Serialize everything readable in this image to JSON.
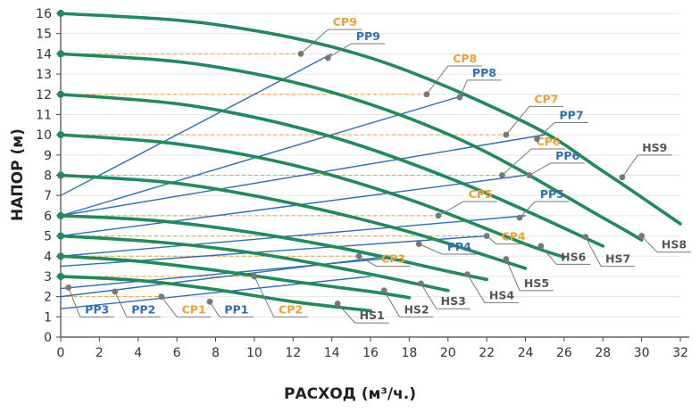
{
  "chart_data": {
    "type": "line",
    "xlabel": "РАСХОД (м³/ч.)",
    "ylabel": "НАПОР (м)",
    "xlim": [
      0,
      32
    ],
    "ylim": [
      0,
      16
    ],
    "x_ticks": [
      0,
      2,
      4,
      6,
      8,
      10,
      12,
      14,
      16,
      18,
      20,
      22,
      24,
      26,
      28,
      30,
      32
    ],
    "y_ticks": [
      0,
      1,
      2,
      3,
      4,
      5,
      6,
      7,
      8,
      9,
      10,
      11,
      12,
      13,
      14,
      15,
      16
    ],
    "colors": {
      "pump_curve": "#1f8a5b",
      "system_curve": "#2f6eb5",
      "operating_point": "#f0a030",
      "label_pump": "#555555",
      "label_pp": "#2f6eb5",
      "label_cp": "#f0a030"
    },
    "pump_curves": [
      {
        "name": "HS1",
        "H0": 3,
        "Qmax": 16,
        "points": [
          [
            0,
            3
          ],
          [
            4,
            2.8
          ],
          [
            8,
            2.35
          ],
          [
            12,
            1.75
          ],
          [
            16,
            1.3
          ]
        ]
      },
      {
        "name": "HS2",
        "H0": 4,
        "Qmax": 18,
        "points": [
          [
            0,
            4
          ],
          [
            4,
            3.75
          ],
          [
            8,
            3.3
          ],
          [
            12,
            2.75
          ],
          [
            16,
            2.25
          ],
          [
            18,
            1.95
          ]
        ]
      },
      {
        "name": "HS3",
        "H0": 5,
        "Qmax": 20,
        "points": [
          [
            0,
            5
          ],
          [
            5,
            4.7
          ],
          [
            10,
            4.15
          ],
          [
            15,
            3.3
          ],
          [
            20,
            2.3
          ]
        ]
      },
      {
        "name": "HS4",
        "H0": 6,
        "Qmax": 22,
        "points": [
          [
            0,
            6
          ],
          [
            5,
            5.75
          ],
          [
            10,
            5.15
          ],
          [
            15,
            4.3
          ],
          [
            20,
            3.25
          ],
          [
            22,
            2.85
          ]
        ]
      },
      {
        "name": "HS5",
        "H0": 8,
        "Qmax": 24,
        "points": [
          [
            0,
            8
          ],
          [
            6,
            7.6
          ],
          [
            12,
            6.6
          ],
          [
            18,
            5.2
          ],
          [
            24,
            3.4
          ]
        ]
      },
      {
        "name": "HS6",
        "H0": 10,
        "Qmax": 26,
        "points": [
          [
            0,
            10
          ],
          [
            6,
            9.55
          ],
          [
            12,
            8.5
          ],
          [
            18,
            6.8
          ],
          [
            24,
            4.6
          ],
          [
            26,
            3.95
          ]
        ]
      },
      {
        "name": "HS7",
        "H0": 12,
        "Qmax": 28,
        "points": [
          [
            0,
            12
          ],
          [
            7,
            11.4
          ],
          [
            14,
            9.9
          ],
          [
            21,
            7.5
          ],
          [
            28,
            4.5
          ]
        ]
      },
      {
        "name": "HS8",
        "H0": 14,
        "Qmax": 30,
        "points": [
          [
            0,
            14
          ],
          [
            7,
            13.5
          ],
          [
            14,
            12.1
          ],
          [
            21,
            9.6
          ],
          [
            28,
            5.9
          ],
          [
            30,
            4.8
          ]
        ]
      },
      {
        "name": "HS9",
        "H0": 16,
        "Qmax": 32,
        "points": [
          [
            0,
            16
          ],
          [
            8,
            15.45
          ],
          [
            16,
            13.8
          ],
          [
            24,
            10.6
          ],
          [
            28,
            8.2
          ],
          [
            32,
            5.6
          ]
        ]
      }
    ],
    "system_curves": [
      {
        "name": "PP1",
        "points": [
          [
            0,
            1.4
          ],
          [
            16,
            3.0
          ]
        ]
      },
      {
        "name": "PP2",
        "points": [
          [
            0,
            2.0
          ],
          [
            17,
            4.0
          ]
        ]
      },
      {
        "name": "PP3",
        "points": [
          [
            0,
            2.4
          ],
          [
            17,
            3.9
          ]
        ]
      },
      {
        "name": "PP4",
        "points": [
          [
            0,
            3.5
          ],
          [
            22,
            5.0
          ]
        ]
      },
      {
        "name": "PP5",
        "points": [
          [
            0,
            4.0
          ],
          [
            24,
            6.0
          ]
        ]
      },
      {
        "name": "PP6",
        "points": [
          [
            0,
            5.0
          ],
          [
            24,
            8.0
          ]
        ]
      },
      {
        "name": "PP7",
        "points": [
          [
            0,
            6.0
          ],
          [
            25,
            10.0
          ]
        ]
      },
      {
        "name": "PP8",
        "points": [
          [
            0,
            6.0
          ],
          [
            21,
            12.0
          ]
        ]
      },
      {
        "name": "PP9",
        "points": [
          [
            0,
            7.0
          ],
          [
            14,
            14.0
          ]
        ]
      }
    ],
    "operating_points": [
      {
        "name": "CP1",
        "x": 5.2,
        "y": 2.0
      },
      {
        "name": "CP2",
        "x": 10.0,
        "y": 3.0
      },
      {
        "name": "CP3",
        "x": 15.4,
        "y": 4.0
      },
      {
        "name": "CP4",
        "x": 22.0,
        "y": 5.0
      },
      {
        "name": "CP5",
        "x": 19.5,
        "y": 6.0
      },
      {
        "name": "CP6",
        "x": 22.8,
        "y": 8.0
      },
      {
        "name": "CP7",
        "x": 23.0,
        "y": 10.0
      },
      {
        "name": "CP8",
        "x": 18.9,
        "y": 12.0
      },
      {
        "name": "CP9",
        "x": 12.4,
        "y": 14.0
      }
    ],
    "pp_markers": [
      {
        "name": "PP1",
        "x": 7.7,
        "y": 1.75
      },
      {
        "name": "PP2",
        "x": 2.8,
        "y": 2.25
      },
      {
        "name": "PP3",
        "x": 0.4,
        "y": 2.45
      },
      {
        "name": "PP4",
        "x": 18.5,
        "y": 4.6
      },
      {
        "name": "PP5",
        "x": 23.7,
        "y": 5.9
      },
      {
        "name": "PP6",
        "x": 24.2,
        "y": 8.0
      },
      {
        "name": "PP7",
        "x": 24.6,
        "y": 9.8
      },
      {
        "name": "PP8",
        "x": 20.6,
        "y": 11.85
      },
      {
        "name": "PP9",
        "x": 13.8,
        "y": 13.8
      }
    ],
    "hs_markers": [
      {
        "name": "HS1",
        "x": 14.3,
        "y": 1.65
      },
      {
        "name": "HS2",
        "x": 16.7,
        "y": 2.3
      },
      {
        "name": "HS3",
        "x": 18.6,
        "y": 2.65
      },
      {
        "name": "HS4",
        "x": 21.0,
        "y": 3.1
      },
      {
        "name": "HS5",
        "x": 23.0,
        "y": 3.85
      },
      {
        "name": "HS6",
        "x": 24.8,
        "y": 4.5
      },
      {
        "name": "HS7",
        "x": 27.1,
        "y": 4.95
      },
      {
        "name": "HS8",
        "x": 30.0,
        "y": 5.0
      },
      {
        "name": "HS9",
        "x": 29.0,
        "y": 7.9
      }
    ],
    "labels": {
      "CP9": {
        "x": 13.8,
        "y": 15.2
      },
      "PP9": {
        "x": 15.0,
        "y": 14.5
      },
      "CP8": {
        "x": 20.0,
        "y": 13.4
      },
      "PP8": {
        "x": 21.0,
        "y": 12.7
      },
      "CP7": {
        "x": 24.2,
        "y": 11.4
      },
      "PP7": {
        "x": 25.5,
        "y": 10.6
      },
      "CP6": {
        "x": 24.3,
        "y": 9.3
      },
      "PP6": {
        "x": 25.3,
        "y": 8.6
      },
      "CP5": {
        "x": 20.8,
        "y": 6.7
      },
      "PP5": {
        "x": 24.5,
        "y": 6.7
      },
      "CP4": {
        "x": 22.5,
        "y": 4.6
      },
      "PP4": {
        "x": 19.7,
        "y": 4.1
      },
      "CP3": {
        "x": 16.3,
        "y": 3.5
      },
      "CP2": {
        "x": 11.0,
        "y": 1.0
      },
      "CP1": {
        "x": 6.0,
        "y": 1.0
      },
      "PP1": {
        "x": 8.2,
        "y": 1.0
      },
      "PP2": {
        "x": 3.4,
        "y": 1.0
      },
      "PP3": {
        "x": 1.0,
        "y": 1.0
      },
      "HS1": {
        "x": 15.2,
        "y": 0.7
      },
      "HS2": {
        "x": 17.5,
        "y": 1.0
      },
      "HS3": {
        "x": 19.4,
        "y": 1.4
      },
      "HS4": {
        "x": 21.9,
        "y": 1.7
      },
      "HS5": {
        "x": 23.7,
        "y": 2.3
      },
      "HS6": {
        "x": 25.6,
        "y": 3.6
      },
      "HS7": {
        "x": 27.9,
        "y": 3.5
      },
      "HS8": {
        "x": 30.8,
        "y": 4.2
      },
      "HS9": {
        "x": 29.8,
        "y": 9.0
      }
    }
  }
}
